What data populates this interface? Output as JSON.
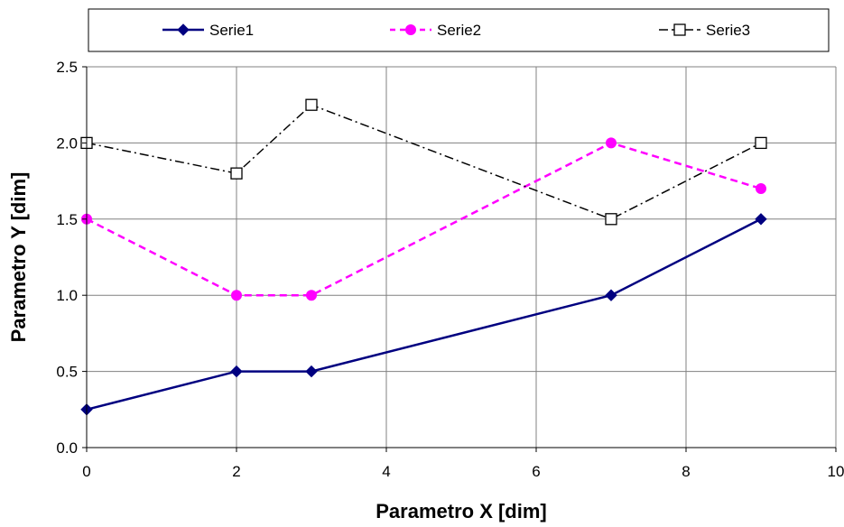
{
  "chart_data": {
    "type": "line",
    "xlabel": "Parametro X [dim]",
    "ylabel": "Parametro Y [dim]",
    "xlim": [
      0,
      10
    ],
    "ylim": [
      0,
      2.5
    ],
    "x_ticks": [
      "0",
      "2",
      "4",
      "6",
      "8",
      "10"
    ],
    "y_ticks": [
      "0.0",
      "0.5",
      "1.0",
      "1.5",
      "2.0",
      "2.5"
    ],
    "grid": true,
    "legend_position": "top",
    "series": [
      {
        "name": "Serie1",
        "x": [
          0,
          2,
          3,
          7,
          9
        ],
        "y": [
          0.25,
          0.5,
          0.5,
          1.0,
          1.5
        ],
        "color": "#000080",
        "marker": "diamond",
        "line_style": "solid"
      },
      {
        "name": "Serie2",
        "x": [
          0,
          2,
          3,
          7,
          9
        ],
        "y": [
          1.5,
          1.0,
          1.0,
          2.0,
          1.7
        ],
        "color": "#ff00ff",
        "marker": "circle",
        "line_style": "dashed"
      },
      {
        "name": "Serie3",
        "x": [
          0,
          2,
          3,
          7,
          9
        ],
        "y": [
          2.0,
          1.8,
          2.25,
          1.5,
          2.0
        ],
        "color": "#000000",
        "marker": "square-open",
        "line_style": "dash-dot"
      }
    ]
  }
}
